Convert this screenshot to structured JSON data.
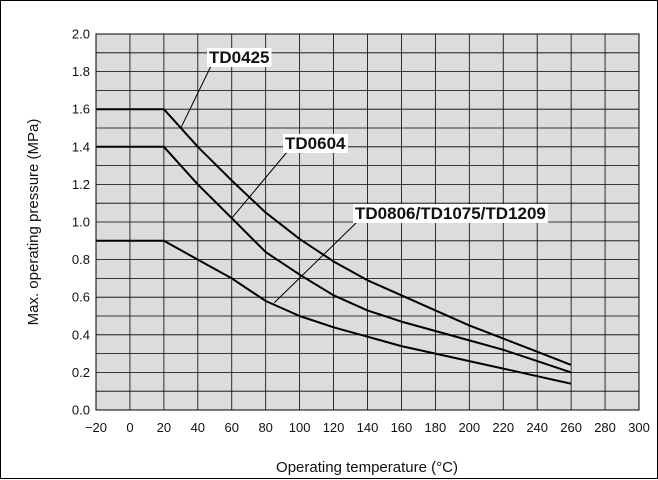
{
  "chart_data": {
    "type": "line",
    "xlabel": "Operating temperature (°C)",
    "ylabel": "Max. operating pressure (MPa)",
    "xlim": [
      -20,
      300
    ],
    "ylim": [
      0,
      2.0
    ],
    "x_ticks": [
      "−20",
      "0",
      "20",
      "40",
      "60",
      "80",
      "100",
      "120",
      "140",
      "160",
      "180",
      "200",
      "220",
      "240",
      "260",
      "280",
      "300"
    ],
    "y_ticks": [
      "0.0",
      "0.2",
      "0.4",
      "0.6",
      "0.8",
      "1.0",
      "1.2",
      "1.4",
      "1.6",
      "1.8",
      "2.0"
    ],
    "grid": true,
    "line_color": "#000000",
    "grid_color": "#000000",
    "plot_background": "#dcdcdc",
    "series": [
      {
        "name": "TD0425",
        "x": [
          -20,
          20,
          40,
          60,
          80,
          100,
          120,
          140,
          160,
          180,
          200,
          220,
          240,
          260
        ],
        "y": [
          1.6,
          1.6,
          1.4,
          1.22,
          1.05,
          0.91,
          0.79,
          0.69,
          0.61,
          0.53,
          0.45,
          0.38,
          0.31,
          0.24
        ]
      },
      {
        "name": "TD0604",
        "x": [
          -20,
          20,
          40,
          60,
          80,
          100,
          120,
          140,
          160,
          180,
          200,
          220,
          240,
          260
        ],
        "y": [
          1.4,
          1.4,
          1.2,
          1.02,
          0.84,
          0.72,
          0.61,
          0.53,
          0.47,
          0.42,
          0.37,
          0.32,
          0.26,
          0.2
        ]
      },
      {
        "name": "TD0806/TD1075/TD1209",
        "x": [
          -20,
          20,
          40,
          60,
          80,
          100,
          120,
          140,
          160,
          180,
          200,
          220,
          240,
          260
        ],
        "y": [
          0.9,
          0.9,
          0.8,
          0.7,
          0.58,
          0.5,
          0.44,
          0.39,
          0.34,
          0.3,
          0.26,
          0.22,
          0.18,
          0.14
        ]
      }
    ]
  }
}
